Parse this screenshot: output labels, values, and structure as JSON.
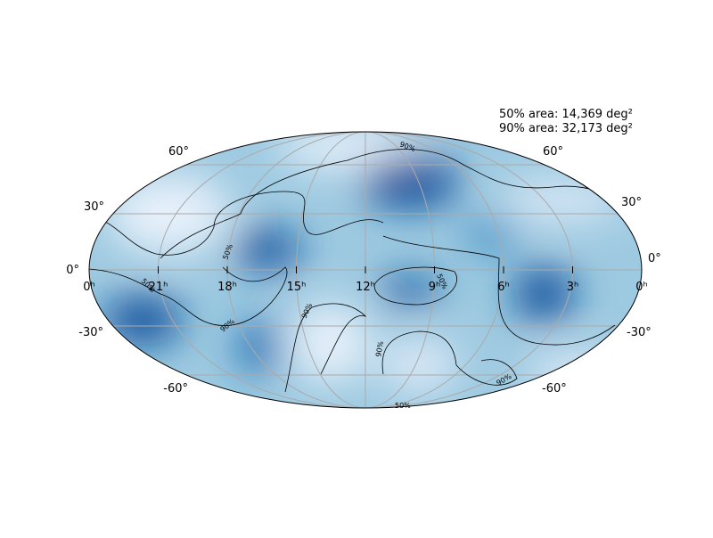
{
  "annotations": [
    "50% area: 14,369 deg²",
    "90% area: 32,173 deg²"
  ],
  "lat_labels_left": [
    "60°",
    "30°",
    "0°",
    "-30°",
    "-60°"
  ],
  "lat_labels_right": [
    "60°",
    "30°",
    "0°",
    "-30°",
    "-60°"
  ],
  "ra_labels": [
    "0ʰ",
    "21ʰ",
    "18ʰ",
    "15ʰ",
    "12ʰ",
    "9ʰ",
    "6ʰ",
    "3ʰ",
    "0ʰ"
  ],
  "contour_labels": [
    "90%",
    "50%",
    "50%",
    "90%",
    "90%",
    "50%",
    "90%",
    "90%",
    "50%"
  ]
}
